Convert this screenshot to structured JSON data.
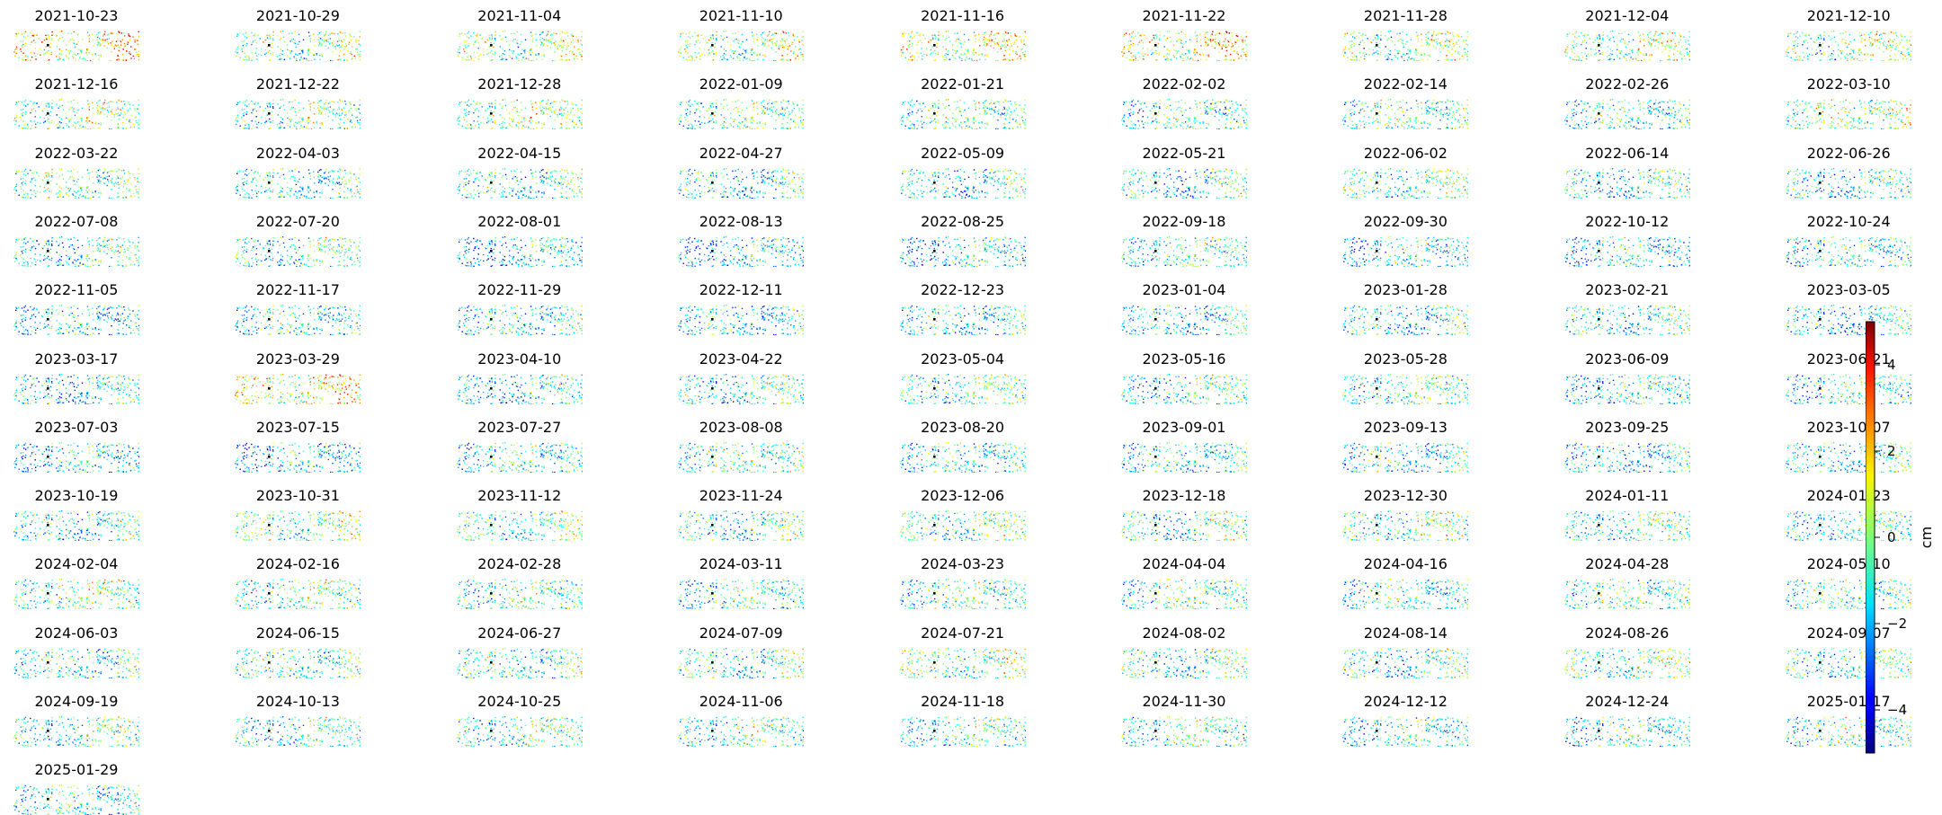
{
  "chart_data": {
    "type": "heatmap",
    "title": "",
    "layout": "grid of small-multiple scatter maps, 9 per row",
    "colormap": "jet",
    "dates": [
      "2021-10-23",
      "2021-10-29",
      "2021-11-04",
      "2021-11-10",
      "2021-11-16",
      "2021-11-22",
      "2021-11-28",
      "2021-12-04",
      "2021-12-10",
      "2021-12-16",
      "2021-12-22",
      "2021-12-28",
      "2022-01-09",
      "2022-01-21",
      "2022-02-02",
      "2022-02-14",
      "2022-02-26",
      "2022-03-10",
      "2022-03-22",
      "2022-04-03",
      "2022-04-15",
      "2022-04-27",
      "2022-05-09",
      "2022-05-21",
      "2022-06-02",
      "2022-06-14",
      "2022-06-26",
      "2022-07-08",
      "2022-07-20",
      "2022-08-01",
      "2022-08-13",
      "2022-08-25",
      "2022-09-18",
      "2022-09-30",
      "2022-10-12",
      "2022-10-24",
      "2022-11-05",
      "2022-11-17",
      "2022-11-29",
      "2022-12-11",
      "2022-12-23",
      "2023-01-04",
      "2023-01-28",
      "2023-02-21",
      "2023-03-05",
      "2023-03-17",
      "2023-03-29",
      "2023-04-10",
      "2023-04-22",
      "2023-05-04",
      "2023-05-16",
      "2023-05-28",
      "2023-06-09",
      "2023-06-21",
      "2023-07-03",
      "2023-07-15",
      "2023-07-27",
      "2023-08-08",
      "2023-08-20",
      "2023-09-01",
      "2023-09-13",
      "2023-09-25",
      "2023-10-07",
      "2023-10-19",
      "2023-10-31",
      "2023-11-12",
      "2023-11-24",
      "2023-12-06",
      "2023-12-18",
      "2023-12-30",
      "2024-01-11",
      "2024-01-23",
      "2024-02-04",
      "2024-02-16",
      "2024-02-28",
      "2024-03-11",
      "2024-03-23",
      "2024-04-04",
      "2024-04-16",
      "2024-04-28",
      "2024-05-10",
      "2024-06-03",
      "2024-06-15",
      "2024-06-27",
      "2024-07-09",
      "2024-07-21",
      "2024-08-02",
      "2024-08-14",
      "2024-08-26",
      "2024-09-07",
      "2024-09-19",
      "2024-10-13",
      "2024-10-25",
      "2024-11-06",
      "2024-11-18",
      "2024-11-30",
      "2024-12-12",
      "2024-12-24",
      "2025-01-17",
      "2025-01-29"
    ],
    "mean_displacement_cm": [
      1.0,
      -0.8,
      -0.6,
      -0.3,
      0.2,
      0.6,
      -0.7,
      -0.5,
      -0.5,
      -0.5,
      -1.0,
      -0.3,
      -0.8,
      -0.9,
      -1.2,
      -0.9,
      -1.4,
      -0.3,
      -0.9,
      -1.6,
      -1.5,
      -1.8,
      -1.7,
      -1.6,
      -1.2,
      -1.7,
      -1.8,
      -1.7,
      -1.4,
      -2.2,
      -2.0,
      -1.9,
      -1.3,
      -1.8,
      -1.9,
      -1.6,
      -1.9,
      -1.7,
      -1.6,
      -2.0,
      -1.9,
      -2.1,
      -1.8,
      -1.6,
      -2.0,
      -2.1,
      0.6,
      -2.0,
      -1.6,
      -1.2,
      -1.5,
      -1.1,
      -1.7,
      -1.4,
      -2.0,
      -2.0,
      -1.4,
      -1.0,
      -1.8,
      -1.8,
      -1.7,
      -1.9,
      -1.8,
      -1.7,
      -0.8,
      -1.2,
      -1.5,
      -1.2,
      -1.4,
      -1.1,
      -1.3,
      -1.5,
      -0.8,
      -0.9,
      -1.0,
      -1.3,
      -1.2,
      -0.9,
      -1.5,
      -1.1,
      -1.3,
      -1.4,
      -1.2,
      -1.3,
      -1.4,
      -0.8,
      -1.3,
      -1.6,
      -1.2,
      -1.3,
      -1.3,
      -1.6,
      -1.3,
      -1.2,
      -1.3,
      -1.2,
      -1.6,
      -1.6,
      -1.2,
      -1.4
    ],
    "colorbar": {
      "label": "cm",
      "range": [
        -5,
        5
      ],
      "tick_values": [
        4,
        2,
        0,
        -2,
        -4
      ],
      "tick_labels": [
        "4",
        "2",
        "0",
        "−2",
        "−4"
      ]
    },
    "reference_point_color": "#000000",
    "axes_visible": false
  }
}
